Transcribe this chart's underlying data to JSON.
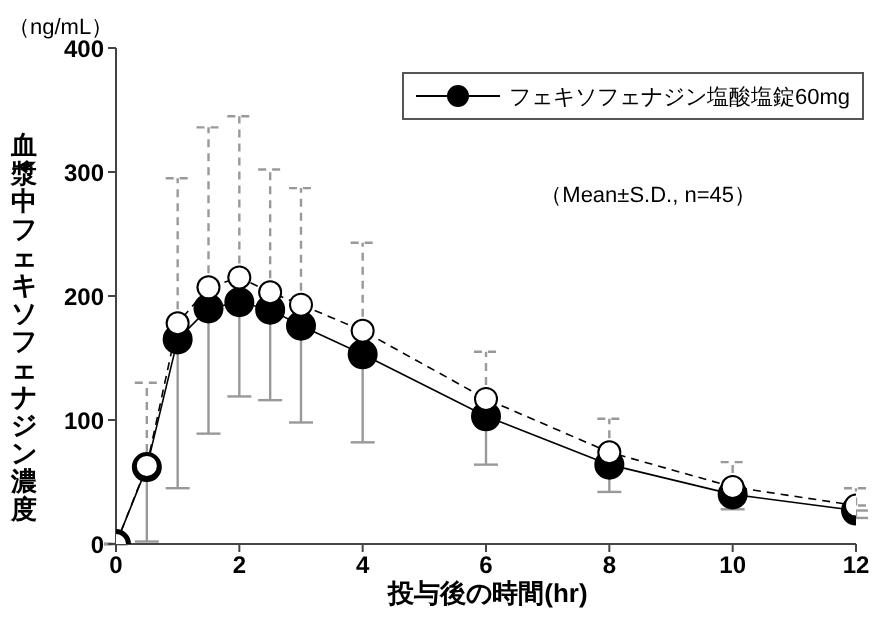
{
  "chart_data": {
    "type": "line",
    "ylabel": "血漿中フェキソフェナジン濃度",
    "xlabel": "投与後の時間(hr)",
    "annotations": [
      "（ng/mL）",
      "（Mean±S.D., n=45）"
    ],
    "x": [
      0,
      0.5,
      1,
      1.5,
      2,
      2.5,
      3,
      4,
      6,
      8,
      10,
      12
    ],
    "series": [
      {
        "name": "フェキソフェナジン塩酸塩錠60mg",
        "color": "#000000",
        "line_style": "solid",
        "values": [
          0,
          62,
          165,
          190,
          195,
          189,
          176,
          153,
          103,
          64,
          40,
          27
        ],
        "errors": [
          null,
          [
            2,
            62
          ],
          [
            45,
            165
          ],
          [
            89,
            190
          ],
          [
            119,
            195
          ],
          [
            116,
            189
          ],
          [
            98,
            176
          ],
          [
            82,
            153
          ],
          [
            64,
            103
          ],
          [
            42,
            64
          ],
          [
            28,
            40
          ],
          [
            21,
            27
          ]
        ]
      },
      {
        "color": "#ffffff",
        "line_style": "dashed",
        "values": [
          0,
          63,
          178,
          207,
          215,
          203,
          193,
          172,
          117,
          74,
          46,
          31
        ],
        "errors": [
          null,
          [
            63,
            130
          ],
          [
            178,
            295
          ],
          [
            207,
            336
          ],
          [
            215,
            345
          ],
          [
            203,
            302
          ],
          [
            193,
            287
          ],
          [
            172,
            243
          ],
          [
            117,
            155
          ],
          [
            74,
            101
          ],
          [
            46,
            66
          ],
          [
            31,
            45
          ]
        ]
      }
    ],
    "xlim": [
      0,
      12
    ],
    "xticks": [
      0,
      2,
      4,
      6,
      8,
      10,
      12
    ],
    "ylim": [
      0,
      400
    ],
    "yticks": [
      0,
      100,
      200,
      300,
      400
    ],
    "marker": "circle",
    "grid": false,
    "legend": "top right"
  }
}
